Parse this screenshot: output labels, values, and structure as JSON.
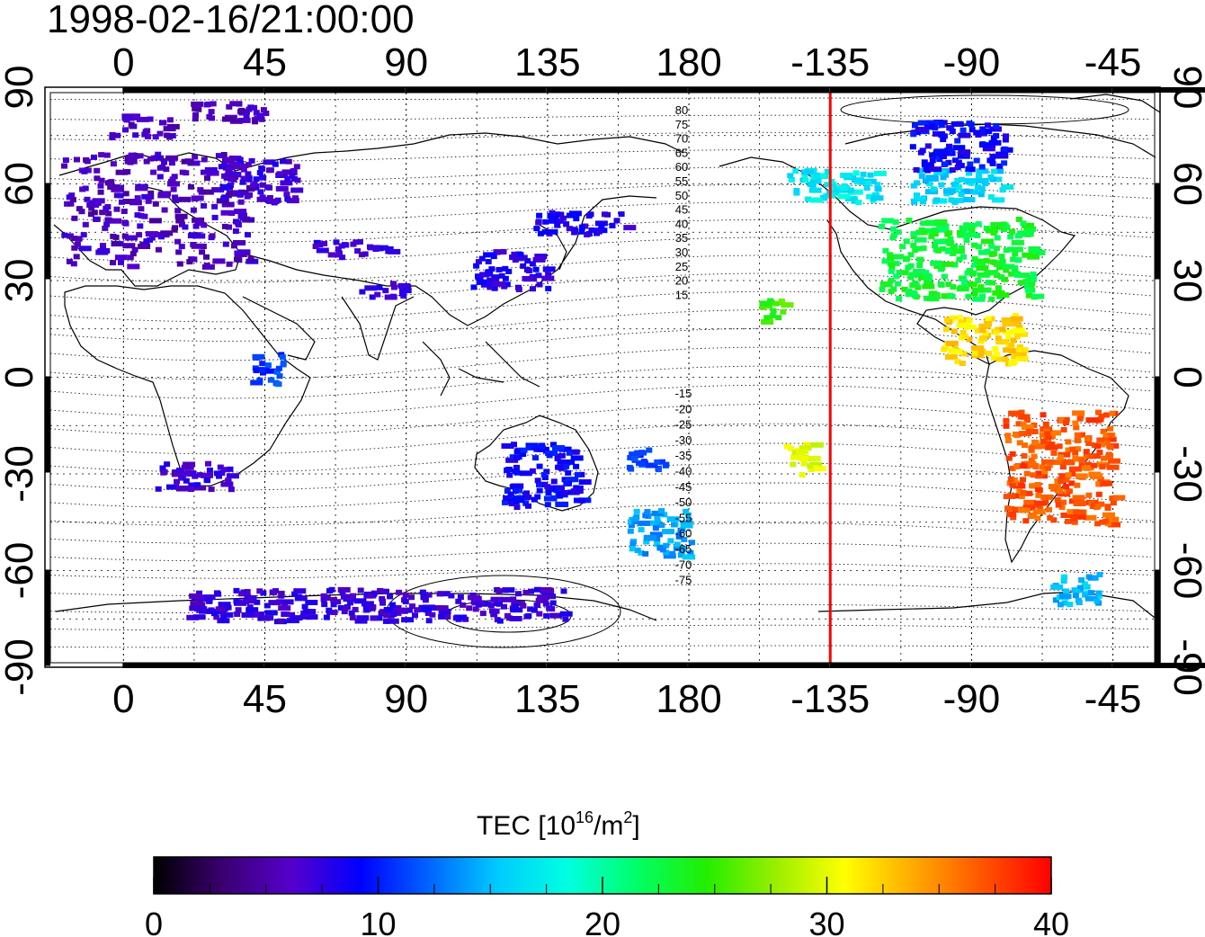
{
  "timestamp": "1998-02-16/21:00:00",
  "map": {
    "lon_ticks": [
      "0",
      "45",
      "90",
      "135",
      "180",
      "-135",
      "-90",
      "-45"
    ],
    "lat_ticks": [
      "90",
      "60",
      "30",
      "0",
      "-30",
      "-60",
      "-90"
    ],
    "magnetic_latitude_labels_north": [
      "80",
      "75",
      "70",
      "65",
      "60",
      "55",
      "50",
      "45",
      "40",
      "35",
      "30",
      "25",
      "20",
      "15"
    ],
    "magnetic_latitude_labels_south": [
      "-15",
      "-20",
      "-25",
      "-30",
      "-35",
      "-40",
      "-45",
      "-50",
      "-55",
      "-60",
      "-65",
      "-70",
      "-75"
    ],
    "terminator_longitude_label": "-135",
    "terminator_color": "#ff0000"
  },
  "colorbar": {
    "title_main": "TEC  [10",
    "title_sup1": "16",
    "title_mid": "/m",
    "title_sup2": "2",
    "title_end": "]",
    "ticks": [
      "0",
      "10",
      "20",
      "30",
      "40"
    ],
    "range": [
      0,
      40
    ],
    "stops": [
      "#000000",
      "#3a0070",
      "#5500cc",
      "#0000ff",
      "#0066ff",
      "#00ccff",
      "#00ffe0",
      "#00ff66",
      "#22ee00",
      "#99ee00",
      "#ffff00",
      "#ffaa00",
      "#ff5500",
      "#ff0000"
    ]
  },
  "chart_data": {
    "type": "heatmap",
    "title": "1998-02-16/21:00:00",
    "xlabel": "",
    "ylabel": "",
    "value_label": "TEC [10^16/m^2]",
    "value_range": [
      0,
      40
    ],
    "x_axis_ticks": [
      0,
      45,
      90,
      135,
      180,
      -135,
      -90,
      -45
    ],
    "y_axis_ticks": [
      90,
      60,
      30,
      0,
      -30,
      -60,
      -90
    ],
    "xlim": [
      -25,
      330
    ],
    "ylim": [
      -90,
      90
    ],
    "grid": true,
    "terminator_longitude": -135,
    "regions": [
      {
        "lon": [
          -20,
          40
        ],
        "lat": [
          35,
          70
        ],
        "tec": 6
      },
      {
        "lon": [
          -5,
          15
        ],
        "lat": [
          75,
          82
        ],
        "tec": 6
      },
      {
        "lon": [
          20,
          45
        ],
        "lat": [
          80,
          86
        ],
        "tec": 6
      },
      {
        "lon": [
          30,
          55
        ],
        "lat": [
          55,
          68
        ],
        "tec": 7
      },
      {
        "lon": [
          60,
          85
        ],
        "lat": [
          38,
          43
        ],
        "tec": 7
      },
      {
        "lon": [
          75,
          90
        ],
        "lat": [
          25,
          30
        ],
        "tec": 7
      },
      {
        "lon": [
          110,
          135
        ],
        "lat": [
          28,
          40
        ],
        "tec": 8
      },
      {
        "lon": [
          130,
          160
        ],
        "lat": [
          45,
          52
        ],
        "tec": 8
      },
      {
        "lon": [
          40,
          50
        ],
        "lat": [
          -2,
          8
        ],
        "tec": 11
      },
      {
        "lon": [
          10,
          35
        ],
        "lat": [
          -34,
          -26
        ],
        "tec": 7
      },
      {
        "lon": [
          120,
          145
        ],
        "lat": [
          -40,
          -20
        ],
        "tec": 9
      },
      {
        "lon": [
          160,
          172
        ],
        "lat": [
          -28,
          -20
        ],
        "tec": 11
      },
      {
        "lon": [
          160,
          180
        ],
        "lat": [
          -55,
          -40
        ],
        "tec": 14
      },
      {
        "lon": [
          20,
          140
        ],
        "lat": [
          -75,
          -65
        ],
        "tec": 7
      },
      {
        "lon": [
          -120,
          -70
        ],
        "lat": [
          25,
          50
        ],
        "tec": 23
      },
      {
        "lon": [
          -150,
          -120
        ],
        "lat": [
          55,
          65
        ],
        "tec": 17
      },
      {
        "lon": [
          -110,
          -80
        ],
        "lat": [
          55,
          65
        ],
        "tec": 16
      },
      {
        "lon": [
          -110,
          -80
        ],
        "lat": [
          65,
          80
        ],
        "tec": 9
      },
      {
        "lon": [
          -80,
          -45
        ],
        "lat": [
          -45,
          -10
        ],
        "tec": 37
      },
      {
        "lon": [
          -100,
          -75
        ],
        "lat": [
          5,
          20
        ],
        "tec": 32
      },
      {
        "lon": [
          -160,
          -150
        ],
        "lat": [
          18,
          25
        ],
        "tec": 25
      },
      {
        "lon": [
          -65,
          -50
        ],
        "lat": [
          -70,
          -60
        ],
        "tec": 15
      },
      {
        "lon": [
          -150,
          -140
        ],
        "lat": [
          -30,
          -20
        ],
        "tec": 30
      }
    ]
  }
}
